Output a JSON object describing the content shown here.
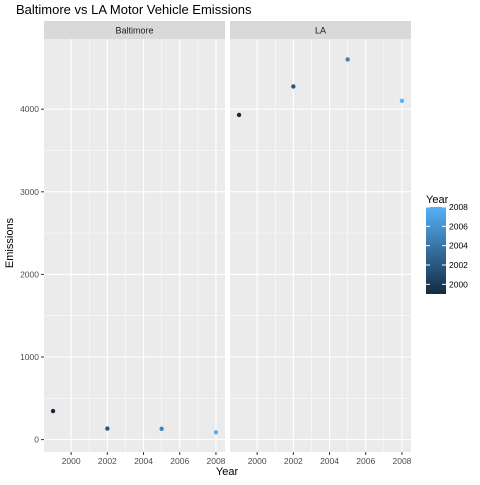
{
  "chart_data": {
    "type": "scatter",
    "title": "Baltimore vs LA Motor Vehicle Emissions",
    "xlabel": "Year",
    "ylabel": "Emissions",
    "xlim": [
      1998.5,
      2008.5
    ],
    "ylim": [
      -150,
      4850
    ],
    "xticks": [
      2000,
      2002,
      2004,
      2006,
      2008
    ],
    "yticks": [
      0,
      1000,
      2000,
      3000,
      4000
    ],
    "grid": true,
    "facets": [
      {
        "name": "Baltimore",
        "points": [
          {
            "x": 1999,
            "y": 346
          },
          {
            "x": 2002,
            "y": 134
          },
          {
            "x": 2005,
            "y": 131
          },
          {
            "x": 2008,
            "y": 88
          }
        ]
      },
      {
        "name": "LA",
        "points": [
          {
            "x": 1999,
            "y": 3931
          },
          {
            "x": 2002,
            "y": 4275
          },
          {
            "x": 2005,
            "y": 4602
          },
          {
            "x": 2008,
            "y": 4101
          }
        ]
      }
    ],
    "color_scale": {
      "title": "Year",
      "variable": "x",
      "min": 1999,
      "max": 2008,
      "low_color": "#132B43",
      "high_color": "#56B1F7",
      "breaks": [
        2000,
        2002,
        2004,
        2006,
        2008
      ]
    },
    "legend_position": "right"
  }
}
